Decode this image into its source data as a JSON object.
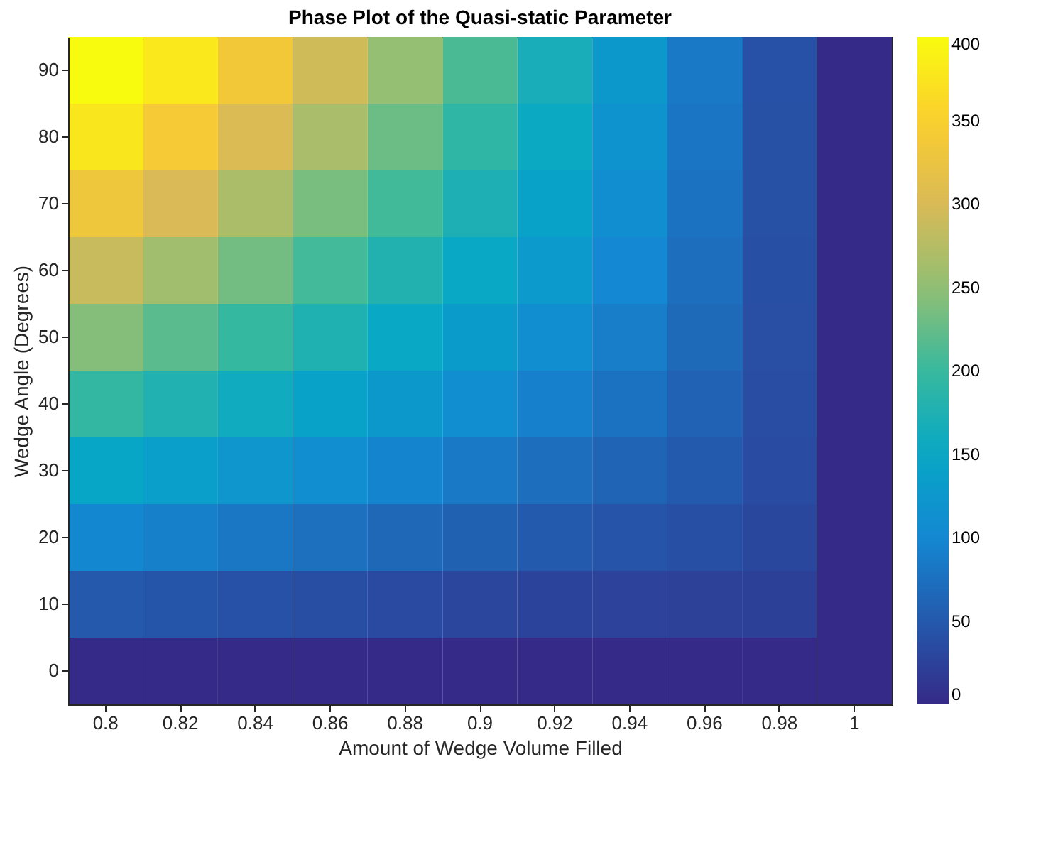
{
  "chart_data": {
    "type": "heatmap",
    "title": "Phase Plot of the Quasi-static Parameter",
    "xlabel": "Amount of Wedge Volume Filled",
    "ylabel": "Wedge Angle (Degrees)",
    "categories": [
      "0.8",
      "0.82",
      "0.84",
      "0.86",
      "0.88",
      "0.9",
      "0.92",
      "0.94",
      "0.96",
      "0.98",
      "1"
    ],
    "y_categories": [
      "90",
      "80",
      "70",
      "60",
      "50",
      "40",
      "30",
      "20",
      "10",
      "0"
    ],
    "cells": [
      [
        400,
        378,
        336,
        294,
        252,
        210,
        168,
        126,
        84,
        42,
        0
      ],
      [
        377,
        340,
        303,
        266,
        229,
        192,
        155,
        118,
        81,
        41,
        0
      ],
      [
        332,
        300,
        268,
        236,
        205,
        173,
        142,
        110,
        77,
        41,
        0
      ],
      [
        288,
        260,
        233,
        206,
        179,
        153,
        127,
        100,
        72,
        40,
        0
      ],
      [
        242,
        219,
        197,
        175,
        153,
        131,
        110,
        89,
        67,
        39,
        0
      ],
      [
        195,
        177,
        160,
        142,
        125,
        109,
        92,
        77,
        60,
        37,
        0
      ],
      [
        148,
        135,
        122,
        109,
        96,
        84,
        73,
        62,
        51,
        35,
        0
      ],
      [
        99,
        91,
        82,
        74,
        66,
        58,
        51,
        45,
        40,
        31,
        0
      ],
      [
        50,
        46,
        42,
        38,
        34,
        30,
        27,
        25,
        24,
        23,
        0
      ],
      [
        0,
        0,
        0,
        0,
        0,
        0,
        0,
        0,
        0,
        0,
        0
      ]
    ],
    "clim": [
      0,
      400
    ],
    "cticks": [
      0,
      50,
      100,
      150,
      200,
      250,
      300,
      350,
      400
    ]
  }
}
